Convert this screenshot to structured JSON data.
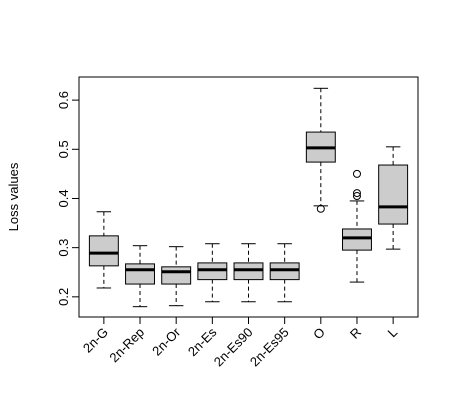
{
  "chart_data": {
    "type": "box",
    "y_label": "Loss values",
    "categories": [
      "2n-G",
      "2n-Rep",
      "2n-Or",
      "2n-Es",
      "2n-Es90",
      "2n-Es95",
      "O",
      "R",
      "L"
    ],
    "boxes": [
      {
        "whislo": 0.218,
        "q1": 0.263,
        "med": 0.289,
        "q3": 0.324,
        "whishi": 0.373,
        "outliers": []
      },
      {
        "whislo": 0.18,
        "q1": 0.226,
        "med": 0.255,
        "q3": 0.267,
        "whishi": 0.304,
        "outliers": []
      },
      {
        "whislo": 0.182,
        "q1": 0.226,
        "med": 0.251,
        "q3": 0.261,
        "whishi": 0.302,
        "outliers": []
      },
      {
        "whislo": 0.19,
        "q1": 0.235,
        "med": 0.255,
        "q3": 0.269,
        "whishi": 0.308,
        "outliers": []
      },
      {
        "whislo": 0.19,
        "q1": 0.235,
        "med": 0.255,
        "q3": 0.269,
        "whishi": 0.308,
        "outliers": []
      },
      {
        "whislo": 0.19,
        "q1": 0.235,
        "med": 0.255,
        "q3": 0.269,
        "whishi": 0.308,
        "outliers": []
      },
      {
        "whislo": 0.385,
        "q1": 0.474,
        "med": 0.503,
        "q3": 0.535,
        "whishi": 0.624,
        "outliers": [
          0.379
        ]
      },
      {
        "whislo": 0.23,
        "q1": 0.295,
        "med": 0.32,
        "q3": 0.338,
        "whishi": 0.395,
        "outliers": [
          0.45,
          0.411,
          0.405
        ]
      },
      {
        "whislo": 0.297,
        "q1": 0.348,
        "med": 0.383,
        "q3": 0.468,
        "whishi": 0.505,
        "outliers": []
      }
    ],
    "color": "#cccccc",
    "ylim": [
      0.159,
      0.647
    ],
    "yticks": [
      0.2,
      0.3,
      0.4,
      0.5,
      0.6
    ]
  }
}
